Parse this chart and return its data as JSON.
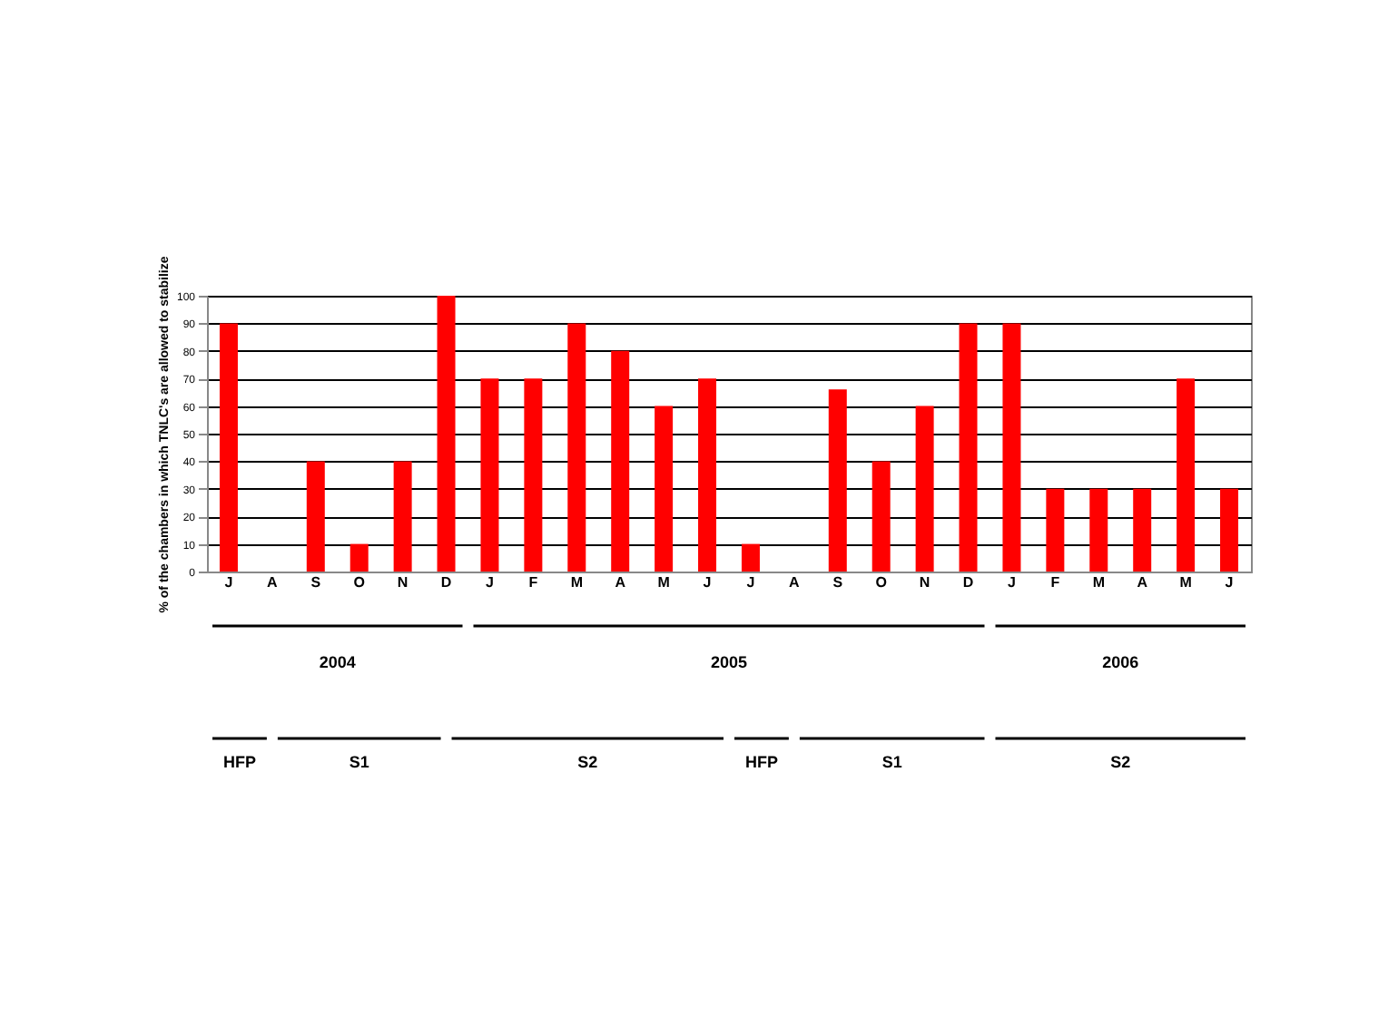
{
  "chart_data": {
    "type": "bar",
    "ylabel": "% of the chambers in which TNLC's are allowed to stabilize",
    "categories": [
      "J",
      "A",
      "S",
      "O",
      "N",
      "D",
      "J",
      "F",
      "M",
      "A",
      "M",
      "J",
      "J",
      "A",
      "S",
      "O",
      "N",
      "D",
      "J",
      "F",
      "M",
      "A",
      "M",
      "J"
    ],
    "values": [
      90,
      0,
      40,
      10,
      40,
      100,
      70,
      70,
      90,
      80,
      60,
      70,
      10,
      0,
      66,
      40,
      60,
      90,
      90,
      30,
      30,
      30,
      70,
      30
    ],
    "color": "#ff0000",
    "ylim": [
      0,
      100
    ],
    "yticks": [
      0,
      10,
      20,
      30,
      40,
      50,
      60,
      70,
      80,
      90,
      100
    ],
    "grid": "y",
    "annotations": [
      "2004",
      "2005",
      "2006",
      "HFP",
      "S1",
      "S2",
      "HFP",
      "S1",
      "S2"
    ]
  }
}
